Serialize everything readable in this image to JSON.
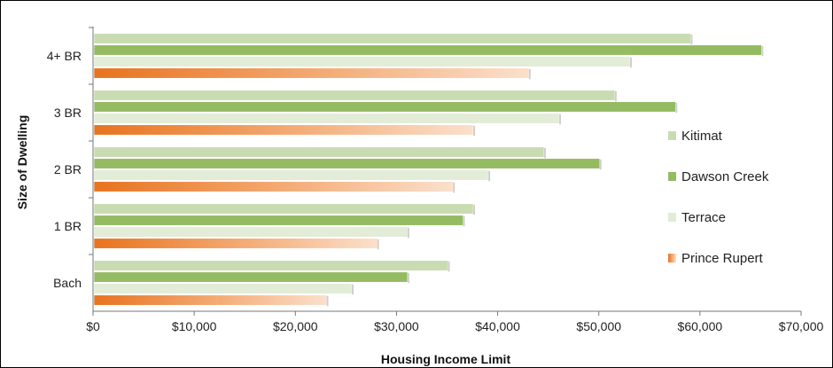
{
  "chart_data": {
    "type": "bar",
    "orientation": "horizontal",
    "xlabel": "Housing Income Limit",
    "ylabel": "Size of Dwelling",
    "xlim": [
      0,
      70000
    ],
    "x_ticks": [
      0,
      10000,
      20000,
      30000,
      40000,
      50000,
      60000,
      70000
    ],
    "x_tick_labels": [
      "$0",
      "$10,000",
      "$20,000",
      "$30,000",
      "$40,000",
      "$50,000",
      "$60,000",
      "$70,000"
    ],
    "categories": [
      "Bach",
      "1 BR",
      "2 BR",
      "3 BR",
      "4+ BR"
    ],
    "series": [
      {
        "name": "Kitimat",
        "color": "#c9dcb1",
        "values": [
          35000,
          37500,
          44500,
          51500,
          59000
        ]
      },
      {
        "name": "Dawson Creek",
        "color": "#94bb62",
        "values": [
          31000,
          36500,
          50000,
          57500,
          66000
        ]
      },
      {
        "name": "Terrace",
        "color": "#e2ecd7",
        "values": [
          25500,
          31000,
          39000,
          46000,
          53000
        ]
      },
      {
        "name": "Prince Rupert",
        "color": "#ee7f2a",
        "values": [
          23000,
          28000,
          35500,
          37500,
          43000
        ]
      }
    ],
    "legend_position": "right",
    "grid": false
  }
}
